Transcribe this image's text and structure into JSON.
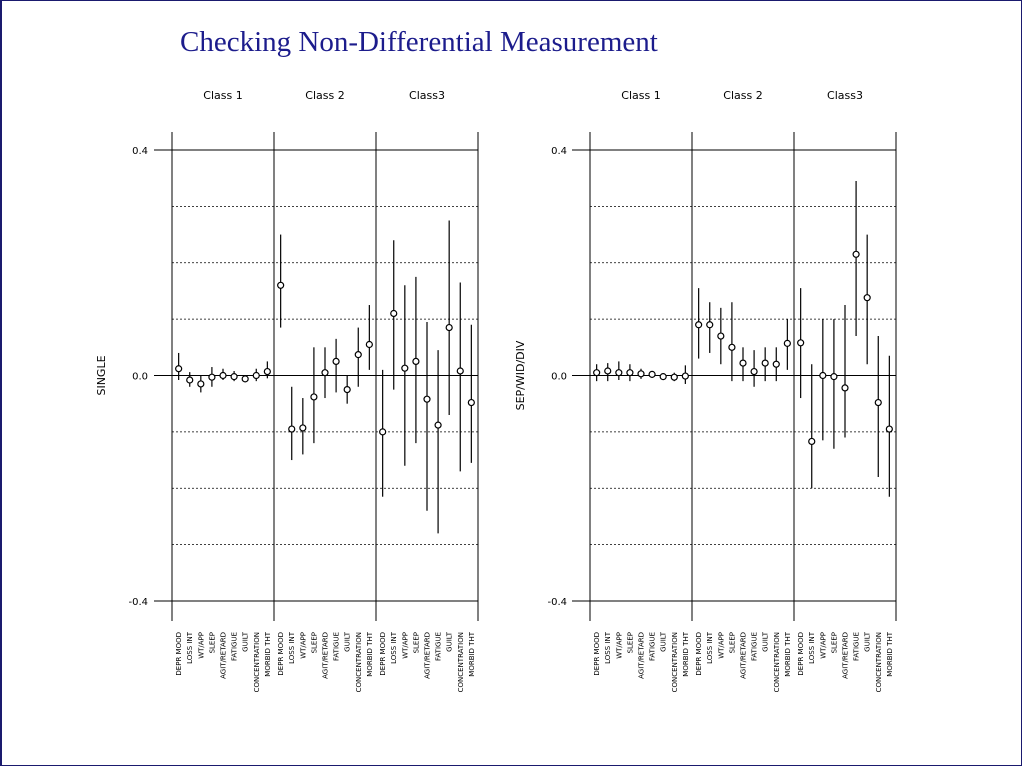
{
  "slide": {
    "title": "Checking Non-Differential Measurement"
  },
  "chart_data": [
    {
      "type": "scatter",
      "subtype": "point estimates with interval bars",
      "ylabel": "SINGLE",
      "ylim": [
        -0.4,
        0.4
      ],
      "yticks": [
        "0.4",
        "0.0",
        "-0.4"
      ],
      "yticks_values": [
        0.4,
        0.0,
        -0.4
      ],
      "grid": "dashed horizontal lines every 0.1",
      "panels": [
        {
          "label": "Class 1",
          "categories": [
            "DEPR MOOD",
            "LOSS INT",
            "WT/APP",
            "SLEEP",
            "AGIT/RETARD",
            "FATIGUE",
            "GUILT",
            "CONCENTRATION",
            "MORBID THT"
          ],
          "values": [
            0.012,
            -0.008,
            -0.015,
            -0.003,
            0.0,
            -0.002,
            -0.006,
            0.0,
            0.007
          ],
          "lower": [
            -0.008,
            -0.02,
            -0.03,
            -0.02,
            -0.008,
            -0.01,
            -0.01,
            -0.01,
            -0.005
          ],
          "upper": [
            0.04,
            0.006,
            0.0,
            0.015,
            0.012,
            0.008,
            -0.002,
            0.012,
            0.025
          ]
        },
        {
          "label": "Class 2",
          "categories": [
            "DEPR MOOD",
            "LOSS INT",
            "WT/APP",
            "SLEEP",
            "AGIT/RETARD",
            "FATIGUE",
            "GUILT",
            "CONCENTRATION",
            "MORBID THT"
          ],
          "values": [
            0.16,
            -0.095,
            -0.093,
            -0.038,
            0.005,
            0.025,
            -0.025,
            0.037,
            0.055
          ],
          "lower": [
            0.085,
            -0.15,
            -0.14,
            -0.12,
            -0.04,
            -0.03,
            -0.05,
            -0.02,
            0.01
          ],
          "upper": [
            0.25,
            -0.02,
            -0.04,
            0.05,
            0.05,
            0.065,
            0.0,
            0.085,
            0.125
          ]
        },
        {
          "label": "Class3",
          "categories": [
            "DEPR MOOD",
            "LOSS INT",
            "WT/APP",
            "SLEEP",
            "AGIT/RETARD",
            "FATIGUE",
            "GUILT",
            "CONCENTRATION",
            "MORBID THT"
          ],
          "values": [
            -0.1,
            0.11,
            0.013,
            0.025,
            -0.042,
            -0.088,
            0.085,
            0.008,
            -0.048
          ],
          "lower": [
            -0.215,
            -0.025,
            -0.16,
            -0.12,
            -0.24,
            -0.28,
            -0.07,
            -0.17,
            -0.155
          ],
          "upper": [
            0.01,
            0.24,
            0.16,
            0.175,
            0.095,
            0.045,
            0.275,
            0.165,
            0.09
          ]
        }
      ]
    },
    {
      "type": "scatter",
      "subtype": "point estimates with interval bars",
      "ylabel": "SEP/WID/DIV",
      "ylim": [
        -0.4,
        0.4
      ],
      "yticks": [
        "0.4",
        "0.0",
        "-0.4"
      ],
      "yticks_values": [
        0.4,
        0.0,
        -0.4
      ],
      "grid": "dashed horizontal lines every 0.1",
      "panels": [
        {
          "label": "Class 1",
          "categories": [
            "DEPR MOOD",
            "LOSS INT",
            "WT/APP",
            "SLEEP",
            "AGIT/RETARD",
            "FATIGUE",
            "GUILT",
            "CONCENTRATION",
            "MORBID THT"
          ],
          "values": [
            0.005,
            0.008,
            0.005,
            0.005,
            0.003,
            0.002,
            -0.002,
            -0.003,
            -0.001
          ],
          "lower": [
            -0.01,
            -0.01,
            -0.008,
            -0.01,
            -0.006,
            -0.004,
            -0.008,
            -0.01,
            -0.015
          ],
          "upper": [
            0.02,
            0.022,
            0.025,
            0.02,
            0.012,
            0.008,
            0.004,
            0.005,
            0.018
          ]
        },
        {
          "label": "Class 2",
          "categories": [
            "DEPR MOOD",
            "LOSS INT",
            "WT/APP",
            "SLEEP",
            "AGIT/RETARD",
            "FATIGUE",
            "GUILT",
            "CONCENTRATION",
            "MORBID THT"
          ],
          "values": [
            0.09,
            0.09,
            0.07,
            0.05,
            0.022,
            0.007,
            0.022,
            0.02,
            0.057
          ],
          "lower": [
            0.03,
            0.04,
            0.02,
            -0.01,
            -0.01,
            -0.02,
            -0.01,
            -0.01,
            0.01
          ],
          "upper": [
            0.155,
            0.13,
            0.12,
            0.13,
            0.05,
            0.045,
            0.05,
            0.05,
            0.1
          ]
        },
        {
          "label": "Class3",
          "categories": [
            "DEPR MOOD",
            "LOSS INT",
            "WT/APP",
            "SLEEP",
            "AGIT/RETARD",
            "FATIGUE",
            "GUILT",
            "CONCENTRATION",
            "MORBID THT"
          ],
          "values": [
            0.058,
            -0.117,
            0.0,
            -0.002,
            -0.022,
            0.215,
            0.138,
            -0.048,
            -0.095
          ],
          "lower": [
            -0.04,
            -0.2,
            -0.115,
            -0.13,
            -0.11,
            0.07,
            0.02,
            -0.18,
            -0.215
          ],
          "upper": [
            0.155,
            0.02,
            0.1,
            0.1,
            0.125,
            0.345,
            0.25,
            0.07,
            0.035
          ]
        }
      ]
    }
  ]
}
